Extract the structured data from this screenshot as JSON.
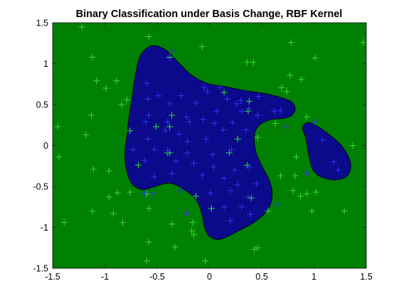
{
  "chart_data": {
    "type": "scatter",
    "title": "Binary Classification under Basis Change, RBF Kernel",
    "xlabel": "",
    "ylabel": "",
    "xlim": [
      -1.5,
      1.5
    ],
    "ylim": [
      -1.5,
      1.5
    ],
    "xticks": [
      "-1.5",
      "-1",
      "-0.5",
      "0",
      "0.5",
      "1",
      "1.5"
    ],
    "yticks": [
      "-1.5",
      "-1",
      "-0.5",
      "0",
      "0.5",
      "1",
      "1.5"
    ],
    "grid": false,
    "background_region": {
      "class": "negative",
      "color": "#008000"
    },
    "decision_regions": [
      {
        "class": "positive",
        "color": "#0a0a8a",
        "boundary": [
          [
            -0.66,
            1.1
          ],
          [
            -0.55,
            1.22
          ],
          [
            -0.42,
            1.17
          ],
          [
            -0.3,
            1.02
          ],
          [
            -0.17,
            0.86
          ],
          [
            -0.02,
            0.76
          ],
          [
            0.15,
            0.72
          ],
          [
            0.35,
            0.67
          ],
          [
            0.55,
            0.63
          ],
          [
            0.7,
            0.58
          ],
          [
            0.79,
            0.53
          ],
          [
            0.82,
            0.44
          ],
          [
            0.78,
            0.36
          ],
          [
            0.7,
            0.33
          ],
          [
            0.6,
            0.32
          ],
          [
            0.5,
            0.27
          ],
          [
            0.44,
            0.18
          ],
          [
            0.43,
            0.05
          ],
          [
            0.45,
            -0.1
          ],
          [
            0.51,
            -0.27
          ],
          [
            0.58,
            -0.45
          ],
          [
            0.6,
            -0.62
          ],
          [
            0.56,
            -0.78
          ],
          [
            0.45,
            -0.92
          ],
          [
            0.3,
            -1.03
          ],
          [
            0.12,
            -1.14
          ],
          [
            0.02,
            -1.13
          ],
          [
            -0.04,
            -1.03
          ],
          [
            -0.07,
            -0.85
          ],
          [
            -0.12,
            -0.68
          ],
          [
            -0.24,
            -0.54
          ],
          [
            -0.38,
            -0.46
          ],
          [
            -0.52,
            -0.5
          ],
          [
            -0.64,
            -0.54
          ],
          [
            -0.74,
            -0.47
          ],
          [
            -0.79,
            -0.32
          ],
          [
            -0.81,
            -0.1
          ],
          [
            -0.79,
            0.12
          ],
          [
            -0.77,
            0.35
          ],
          [
            -0.74,
            0.58
          ],
          [
            -0.71,
            0.85
          ]
        ]
      },
      {
        "class": "positive",
        "color": "#0a0a8a",
        "boundary": [
          [
            0.9,
            0.25
          ],
          [
            0.95,
            0.28
          ],
          [
            1.04,
            0.23
          ],
          [
            1.14,
            0.14
          ],
          [
            1.24,
            0.03
          ],
          [
            1.31,
            -0.09
          ],
          [
            1.35,
            -0.21
          ],
          [
            1.34,
            -0.33
          ],
          [
            1.28,
            -0.4
          ],
          [
            1.18,
            -0.42
          ],
          [
            1.06,
            -0.38
          ],
          [
            0.99,
            -0.3
          ],
          [
            0.96,
            -0.18
          ],
          [
            0.94,
            -0.05
          ],
          [
            0.92,
            0.1
          ],
          [
            0.89,
            0.2
          ]
        ]
      }
    ],
    "series": [
      {
        "class": "negative",
        "marker": "+",
        "color": "#33dd33",
        "points": [
          [
            -1.22,
            1.45
          ],
          [
            -0.58,
            1.33
          ],
          [
            -0.07,
            1.21
          ],
          [
            0.78,
            1.26
          ],
          [
            1.47,
            1.26
          ],
          [
            -1.12,
            1.08
          ],
          [
            -0.38,
            1.08
          ],
          [
            0.36,
            1.02
          ],
          [
            0.42,
            1.02
          ],
          [
            1.01,
            1.07
          ],
          [
            -1.08,
            0.79
          ],
          [
            -0.89,
            0.79
          ],
          [
            0.77,
            0.86
          ],
          [
            0.88,
            0.81
          ],
          [
            -0.99,
            0.7
          ],
          [
            -0.84,
            0.5
          ],
          [
            -0.79,
            0.56
          ],
          [
            0.14,
            0.65
          ],
          [
            0.69,
            0.71
          ],
          [
            0.74,
            0.66
          ],
          [
            0.38,
            0.54
          ],
          [
            -1.13,
            0.37
          ],
          [
            -0.36,
            0.37
          ],
          [
            0.37,
            0.42
          ],
          [
            0.93,
            0.35
          ],
          [
            -1.45,
            0.23
          ],
          [
            -1.18,
            0.13
          ],
          [
            -0.38,
            0.23
          ],
          [
            -0.51,
            0.23
          ],
          [
            0.63,
            0.27
          ],
          [
            0.27,
            0.08
          ],
          [
            0.46,
            0.1
          ],
          [
            -0.76,
            0.18
          ],
          [
            0.19,
            -0.09
          ],
          [
            -0.38,
            -0.09
          ],
          [
            1.37,
            0.0
          ],
          [
            -1.44,
            -0.14
          ],
          [
            0.83,
            -0.14
          ],
          [
            -0.4,
            -0.09
          ],
          [
            0.36,
            -0.24
          ],
          [
            -1.11,
            -0.29
          ],
          [
            -0.96,
            -0.31
          ],
          [
            -0.68,
            -0.24
          ],
          [
            0.68,
            -0.37
          ],
          [
            0.82,
            -0.37
          ],
          [
            -0.96,
            -0.63
          ],
          [
            -0.88,
            -0.58
          ],
          [
            -0.76,
            -0.57
          ],
          [
            -0.6,
            -0.59
          ],
          [
            -0.13,
            -0.62
          ],
          [
            0.4,
            -0.64
          ],
          [
            0.8,
            -0.55
          ],
          [
            0.87,
            -0.62
          ],
          [
            0.93,
            -0.59
          ],
          [
            1.02,
            -0.57
          ],
          [
            -1.12,
            -0.8
          ],
          [
            -0.92,
            -0.83
          ],
          [
            -0.58,
            -0.77
          ],
          [
            0.56,
            -0.8
          ],
          [
            0.98,
            -0.8
          ],
          [
            1.29,
            -0.8
          ],
          [
            -1.39,
            -0.94
          ],
          [
            -0.83,
            -0.94
          ],
          [
            -0.36,
            -0.96
          ],
          [
            -0.16,
            -0.94
          ],
          [
            0.02,
            -0.77
          ],
          [
            -0.17,
            -1.04
          ],
          [
            -0.15,
            -1.09
          ],
          [
            -0.58,
            -1.18
          ],
          [
            -0.33,
            -1.24
          ],
          [
            0.43,
            -1.27
          ],
          [
            0.46,
            -1.25
          ],
          [
            -0.6,
            -1.41
          ],
          [
            -0.04,
            -1.41
          ]
        ]
      },
      {
        "class": "positive",
        "marker": "+",
        "color": "#3333ee",
        "points": [
          [
            -0.36,
            1.16
          ],
          [
            -0.38,
            1.07
          ],
          [
            -0.6,
            0.76
          ],
          [
            -0.59,
            0.57
          ],
          [
            -0.49,
            0.61
          ],
          [
            -0.27,
            0.61
          ],
          [
            -0.05,
            0.71
          ],
          [
            0.1,
            0.71
          ],
          [
            -0.38,
            0.51
          ],
          [
            -0.13,
            0.52
          ],
          [
            -0.02,
            0.66
          ],
          [
            0.17,
            0.57
          ],
          [
            0.3,
            0.55
          ],
          [
            0.47,
            0.6
          ],
          [
            -0.58,
            0.37
          ],
          [
            -0.22,
            0.35
          ],
          [
            -0.06,
            0.32
          ],
          [
            0.07,
            0.42
          ],
          [
            0.26,
            0.51
          ],
          [
            0.62,
            0.42
          ],
          [
            0.68,
            0.43
          ],
          [
            -0.61,
            0.29
          ],
          [
            -0.4,
            0.29
          ],
          [
            -0.19,
            0.29
          ],
          [
            0.05,
            0.27
          ],
          [
            0.22,
            0.28
          ],
          [
            0.31,
            0.42
          ],
          [
            0.38,
            0.45
          ],
          [
            -0.59,
            0.08
          ],
          [
            -0.42,
            0.18
          ],
          [
            -0.29,
            0.14
          ],
          [
            -0.21,
            0.05
          ],
          [
            -0.03,
            0.08
          ],
          [
            0.13,
            0.19
          ],
          [
            0.35,
            0.19
          ],
          [
            0.46,
            0.37
          ],
          [
            0.73,
            0.23
          ],
          [
            -0.73,
            -0.05
          ],
          [
            -0.53,
            -0.05
          ],
          [
            -0.4,
            -0.06
          ],
          [
            -0.21,
            -0.09
          ],
          [
            0.03,
            -0.11
          ],
          [
            0.21,
            -0.05
          ],
          [
            -0.62,
            -0.18
          ],
          [
            -0.32,
            -0.19
          ],
          [
            -0.15,
            -0.22
          ],
          [
            0.04,
            -0.26
          ],
          [
            0.24,
            -0.3
          ],
          [
            0.38,
            -0.26
          ],
          [
            -0.53,
            -0.38
          ],
          [
            -0.36,
            -0.34
          ],
          [
            -0.07,
            -0.36
          ],
          [
            0.14,
            -0.4
          ],
          [
            0.27,
            -0.48
          ],
          [
            0.45,
            -0.47
          ],
          [
            -0.27,
            -0.55
          ],
          [
            0.01,
            -0.58
          ],
          [
            0.2,
            -0.55
          ],
          [
            0.37,
            -0.63
          ],
          [
            -0.55,
            -0.58
          ],
          [
            -0.62,
            -0.58
          ],
          [
            0.14,
            -0.75
          ],
          [
            0.31,
            -0.75
          ],
          [
            0.2,
            -0.92
          ],
          [
            0.39,
            -0.84
          ],
          [
            -0.22,
            -0.83
          ],
          [
            0.65,
            -0.72
          ],
          [
            0.93,
            -0.34
          ],
          [
            1.0,
            0.29
          ],
          [
            1.08,
            0.07
          ],
          [
            1.19,
            -0.2
          ],
          [
            1.23,
            -0.3
          ]
        ]
      }
    ]
  }
}
